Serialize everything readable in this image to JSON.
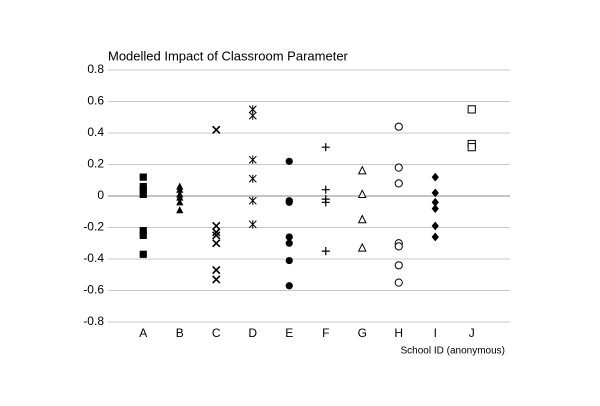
{
  "chart_data": {
    "type": "strip",
    "title": "Modelled Impact of Classroom Parameter",
    "x_label": "School ID (anonymous)",
    "categories": [
      "A",
      "B",
      "C",
      "D",
      "E",
      "F",
      "G",
      "H",
      "I",
      "J"
    ],
    "values": [
      [
        0.12,
        0.06,
        0.04,
        0.01,
        -0.22,
        -0.25,
        -0.37
      ],
      [
        0.06,
        0.04,
        0.01,
        -0.01,
        -0.04,
        -0.09
      ],
      [
        0.42,
        -0.19,
        -0.23,
        -0.25,
        -0.3,
        -0.47,
        -0.53
      ],
      [
        0.55,
        0.51,
        0.23,
        0.11,
        -0.03,
        -0.18
      ],
      [
        0.22,
        -0.03,
        -0.04,
        -0.26,
        -0.3,
        -0.41,
        -0.57
      ],
      [
        0.31,
        0.04,
        -0.02,
        -0.04,
        -0.35
      ],
      [
        0.16,
        0.01,
        -0.15,
        -0.33
      ],
      [
        0.44,
        0.18,
        0.08,
        -0.3,
        -0.32,
        -0.44,
        -0.55
      ],
      [
        0.12,
        0.02,
        -0.04,
        -0.08,
        -0.19,
        -0.26
      ],
      [
        0.55,
        0.33,
        0.31
      ]
    ],
    "markers": [
      "filled-square",
      "filled-triangle",
      "cross",
      "asterisk",
      "filled-circle",
      "plus",
      "open-triangle",
      "open-circle",
      "filled-diamond",
      "open-square"
    ],
    "color": "#000000",
    "ylim": [
      -0.8,
      0.8
    ],
    "yticks": [
      -0.8,
      -0.6,
      -0.4,
      -0.2,
      0,
      0.2,
      0.4,
      0.6,
      0.8
    ],
    "grid": true
  }
}
